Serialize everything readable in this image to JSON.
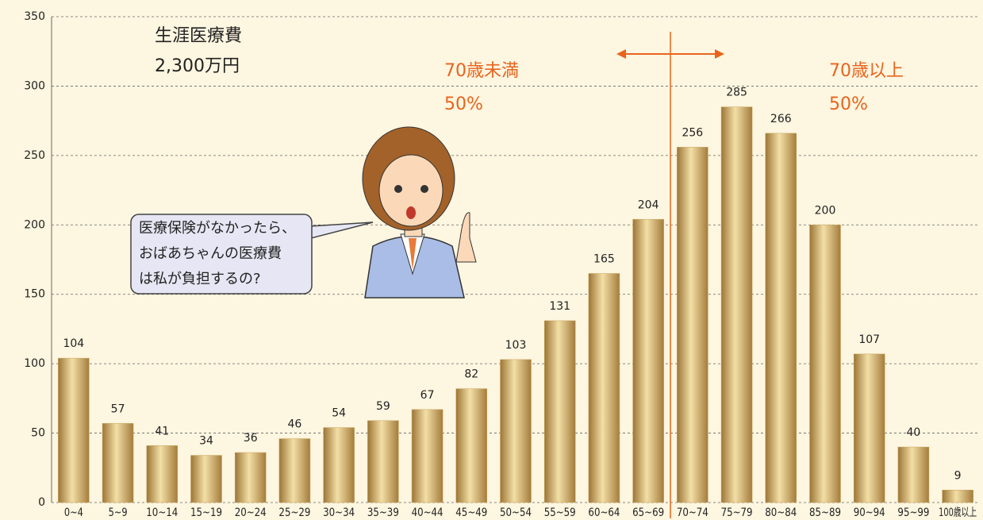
{
  "chart_data": {
    "type": "bar",
    "categories": [
      "0~4",
      "5~9",
      "10~14",
      "15~19",
      "20~24",
      "25~29",
      "30~34",
      "35~39",
      "40~44",
      "45~49",
      "50~54",
      "55~59",
      "60~64",
      "65~69",
      "70~74",
      "75~79",
      "80~84",
      "85~89",
      "90~94",
      "95~99",
      "100歳以上"
    ],
    "values": [
      104,
      57,
      41,
      34,
      36,
      46,
      54,
      59,
      67,
      82,
      103,
      131,
      165,
      204,
      256,
      285,
      266,
      200,
      107,
      40,
      9
    ],
    "color": "#c9a35a",
    "ylim": [
      0,
      350
    ],
    "yticks": [
      0,
      50,
      100,
      150,
      200,
      250,
      300,
      350
    ],
    "grid": true,
    "annotations": {
      "lifetime_label": "生涯医療費",
      "lifetime_value": "2,300万円",
      "under70_label": "70歳未満",
      "under70_share": "50%",
      "over70_label": "70歳以上",
      "over70_share": "50%"
    },
    "speech_bubble": [
      "医療保険がなかったら、",
      "おばあちゃんの医療費",
      "は私が負担するの?"
    ]
  }
}
